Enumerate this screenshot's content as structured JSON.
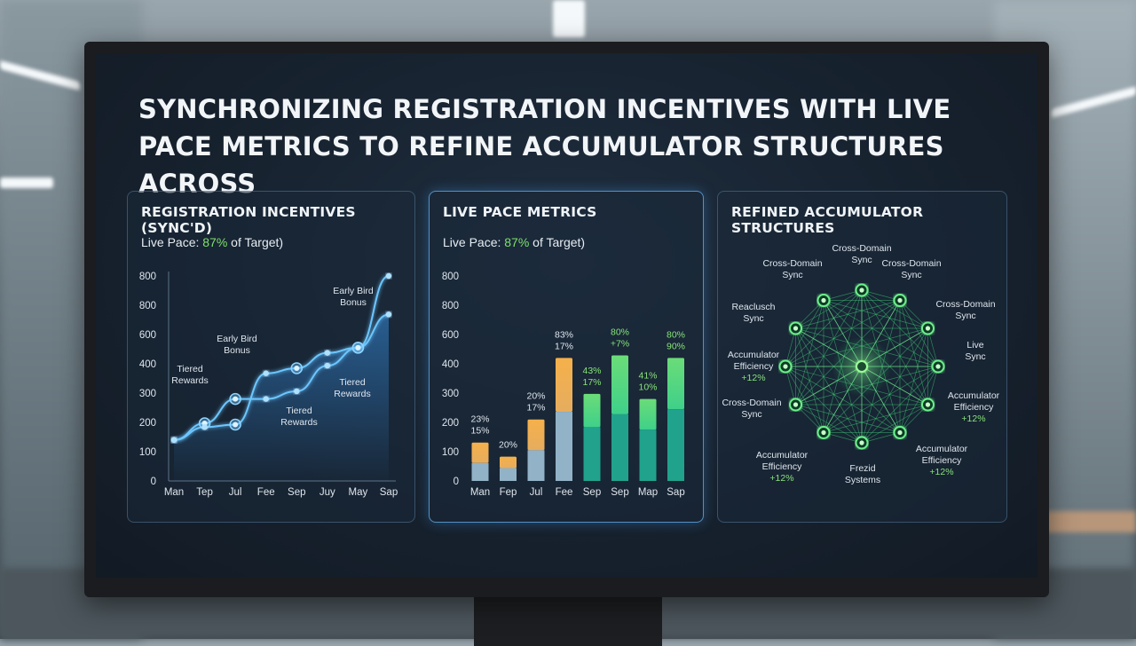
{
  "title": "SYNCHRONIZING REGISTRATION INCENTIVES WITH LIVE PACE METRICS TO REFINE ACCUMULATOR STRUCTURES ACROSS",
  "colors": {
    "line": "#6cc6ff",
    "pace": "#7ee06a",
    "orange": "#f5b04a",
    "green": "#3fd08a",
    "accent_glow": "#5ab8ff"
  },
  "panels": {
    "incentives": {
      "title": "REGISTRATION INCENTIVES (SYNC'D)",
      "pace_prefix": "Live Pace: ",
      "pace_value": "87%",
      "pace_suffix": " of Target)"
    },
    "pace_metrics": {
      "title": "LIVE PACE METRICS",
      "pace_prefix": "Live Pace: ",
      "pace_value": "87%",
      "pace_suffix": " of Target)"
    },
    "accumulator": {
      "title": "REFINED ACCUMULATOR STRUCTURES",
      "nodes": [
        {
          "lines": [
            "Cross-Domain",
            "Sync"
          ],
          "extra": ""
        },
        {
          "lines": [
            "Cross-Domain",
            "Sync"
          ],
          "extra": ""
        },
        {
          "lines": [
            "Live",
            "Sync"
          ],
          "extra": ""
        },
        {
          "lines": [
            "Accumulator",
            "Efficiency"
          ],
          "extra": "+12%"
        },
        {
          "lines": [
            "Accumulator",
            "Efficiency"
          ],
          "extra": "+12%"
        },
        {
          "lines": [
            "Frezid",
            "Systems"
          ],
          "extra": ""
        },
        {
          "lines": [
            "Accumulator",
            "Efficiency"
          ],
          "extra": "+12%"
        },
        {
          "lines": [
            "Cross-Domain",
            "Sync"
          ],
          "extra": ""
        },
        {
          "lines": [
            "Accumulator",
            "Efficiency"
          ],
          "extra": "+12%"
        },
        {
          "lines": [
            "Reaclusch",
            "Sync"
          ],
          "extra": ""
        },
        {
          "lines": [
            "Cross-Domain",
            "Sync"
          ],
          "extra": ""
        },
        {
          "lines": [
            "Cross-Domain",
            "Sync"
          ],
          "extra": ""
        }
      ]
    }
  },
  "chart_data": [
    {
      "type": "line",
      "title": "REGISTRATION INCENTIVES (SYNC'D)",
      "categories": [
        "Man",
        "Tep",
        "Jul",
        "Fee",
        "Sep",
        "Juy",
        "May",
        "Sap"
      ],
      "y_tick_labels": [
        "0",
        "100",
        "200",
        "300",
        "400",
        "600",
        "800",
        "800"
      ],
      "series": [
        {
          "values": [
            160,
            225,
            320,
            320,
            350,
            450,
            520,
            800
          ]
        },
        {
          "values": [
            160,
            210,
            220,
            420,
            440,
            500,
            520,
            650
          ]
        }
      ],
      "annotations": [
        {
          "lines": [
            "Tiered",
            "Rewards"
          ]
        },
        {
          "lines": [
            "Early Bird",
            "Bonus"
          ]
        },
        {
          "lines": [
            "Tiered",
            "Rewards"
          ]
        },
        {
          "lines": [
            "Tiered",
            "Rewards"
          ]
        },
        {
          "lines": [
            "Early Bird",
            "Bonus"
          ]
        }
      ]
    },
    {
      "type": "bar",
      "title": "LIVE PACE METRICS",
      "categories": [
        "Man",
        "Fep",
        "Jul",
        "Fee",
        "Sep",
        "Sep",
        "Map",
        "Sap"
      ],
      "y_tick_labels": [
        "0",
        "100",
        "200",
        "300",
        "400",
        "600",
        "800",
        "800"
      ],
      "values": [
        150,
        95,
        240,
        480,
        340,
        490,
        320,
        480
      ],
      "base_values": [
        70,
        50,
        120,
        270,
        210,
        260,
        200,
        280
      ],
      "colors": [
        "orange",
        "orange",
        "orange",
        "orange",
        "green",
        "green",
        "green",
        "green"
      ],
      "labels": [
        {
          "lines": [
            "23%",
            "15%"
          ]
        },
        {
          "lines": [
            "20%"
          ]
        },
        {
          "lines": [
            "20%",
            "17%"
          ]
        },
        {
          "lines": [
            "83%",
            "17%"
          ]
        },
        {
          "lines": [
            "43%",
            "17%"
          ]
        },
        {
          "lines": [
            "80%",
            "+7%"
          ]
        },
        {
          "lines": [
            "41%",
            "10%"
          ]
        },
        {
          "lines": [
            "80%",
            "90%"
          ]
        }
      ]
    }
  ]
}
